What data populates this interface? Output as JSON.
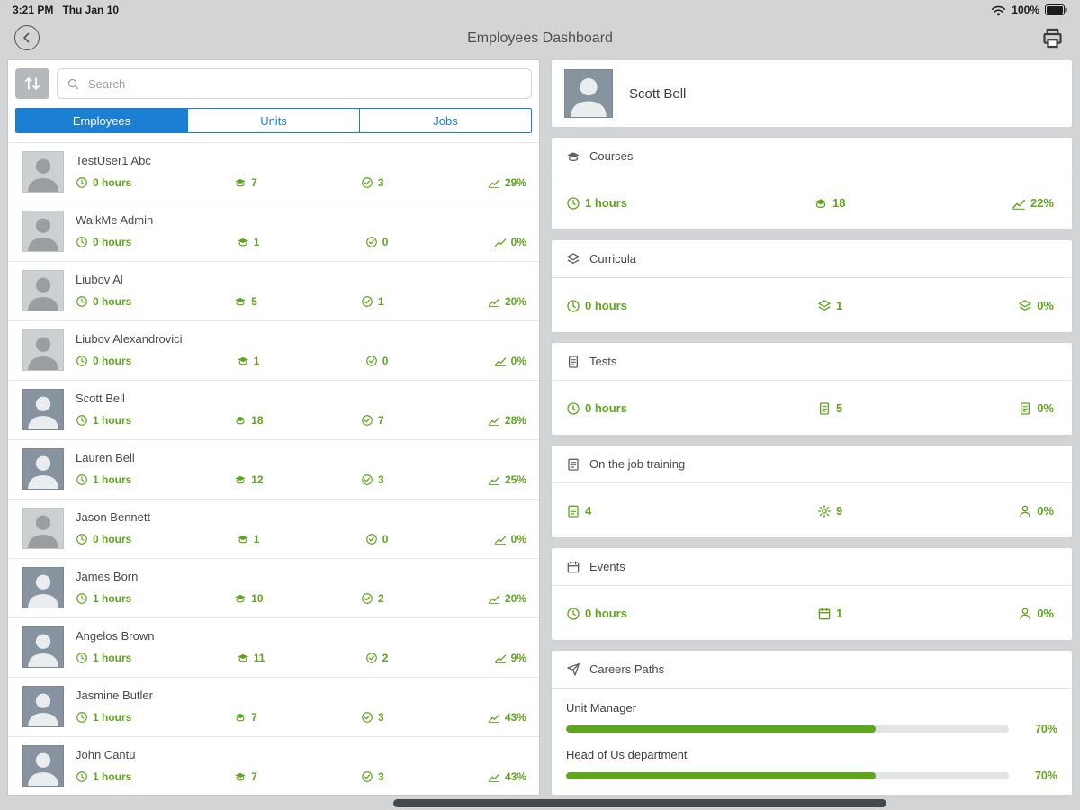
{
  "status_bar": {
    "time": "3:21 PM",
    "date": "Thu Jan 10",
    "battery": "100%"
  },
  "header": {
    "title": "Employees Dashboard"
  },
  "colors": {
    "accent_green": "#5FA61E",
    "accent_blue": "#1C7FD4",
    "background": "#D2D4D6"
  },
  "icons": {
    "back": "chevron-left-circle",
    "print": "printer",
    "sort": "sort-arrows",
    "search": "magnifier",
    "hours": "clock",
    "courses": "graduation-cap",
    "completed": "check-circle",
    "success": "trend-chart",
    "curricula": "layers",
    "tests": "test-sheet",
    "training": "clipboard-list",
    "sessions": "gear",
    "trainee": "person",
    "events": "calendar",
    "careers": "paper-plane",
    "wifi": "wifi",
    "battery": "battery-full"
  },
  "left_panel": {
    "search_placeholder": "Search",
    "tabs": [
      {
        "label": "Employees",
        "active": true
      },
      {
        "label": "Units",
        "active": false
      },
      {
        "label": "Jobs",
        "active": false
      }
    ],
    "employees": [
      {
        "name": "TestUser1 Abc",
        "hours": "0 hours",
        "courses": "7",
        "completed": "3",
        "percent": "29%",
        "avatar": "placeholder"
      },
      {
        "name": "WalkMe Admin",
        "hours": "0 hours",
        "courses": "1",
        "completed": "0",
        "percent": "0%",
        "avatar": "placeholder"
      },
      {
        "name": "Liubov Al",
        "hours": "0 hours",
        "courses": "5",
        "completed": "1",
        "percent": "20%",
        "avatar": "placeholder"
      },
      {
        "name": "Liubov Alexandrovici",
        "hours": "0 hours",
        "courses": "1",
        "completed": "0",
        "percent": "0%",
        "avatar": "placeholder"
      },
      {
        "name": "Scott Bell",
        "hours": "1 hours",
        "courses": "18",
        "completed": "7",
        "percent": "28%",
        "avatar": "photo"
      },
      {
        "name": "Lauren Bell",
        "hours": "1 hours",
        "courses": "12",
        "completed": "3",
        "percent": "25%",
        "avatar": "photo"
      },
      {
        "name": "Jason Bennett",
        "hours": "0 hours",
        "courses": "1",
        "completed": "0",
        "percent": "0%",
        "avatar": "placeholder"
      },
      {
        "name": "James Born",
        "hours": "1 hours",
        "courses": "10",
        "completed": "2",
        "percent": "20%",
        "avatar": "photo"
      },
      {
        "name": "Angelos Brown",
        "hours": "1 hours",
        "courses": "11",
        "completed": "2",
        "percent": "9%",
        "avatar": "photo"
      },
      {
        "name": "Jasmine Butler",
        "hours": "1 hours",
        "courses": "7",
        "completed": "3",
        "percent": "43%",
        "avatar": "photo"
      },
      {
        "name": "John Cantu",
        "hours": "1 hours",
        "courses": "7",
        "completed": "3",
        "percent": "43%",
        "avatar": "photo"
      }
    ]
  },
  "right_panel": {
    "profile": {
      "name": "Scott Bell"
    },
    "courses": {
      "title": "Courses",
      "hours": "1 hours",
      "count": "18",
      "percent": "22%"
    },
    "curricula": {
      "title": "Curricula",
      "hours": "0 hours",
      "count": "1",
      "percent": "0%"
    },
    "tests": {
      "title": "Tests",
      "hours": "0 hours",
      "count": "5",
      "percent": "0%"
    },
    "training": {
      "title": "On the job training",
      "count": "4",
      "sessions": "9",
      "percent": "0%"
    },
    "events": {
      "title": "Events",
      "hours": "0 hours",
      "count": "1",
      "percent": "0%"
    },
    "careers": {
      "title": "Careers Paths",
      "paths": [
        {
          "label": "Unit Manager",
          "percent": 70,
          "percent_label": "70%"
        },
        {
          "label": "Head of Us department",
          "percent": 70,
          "percent_label": "70%"
        }
      ]
    }
  }
}
